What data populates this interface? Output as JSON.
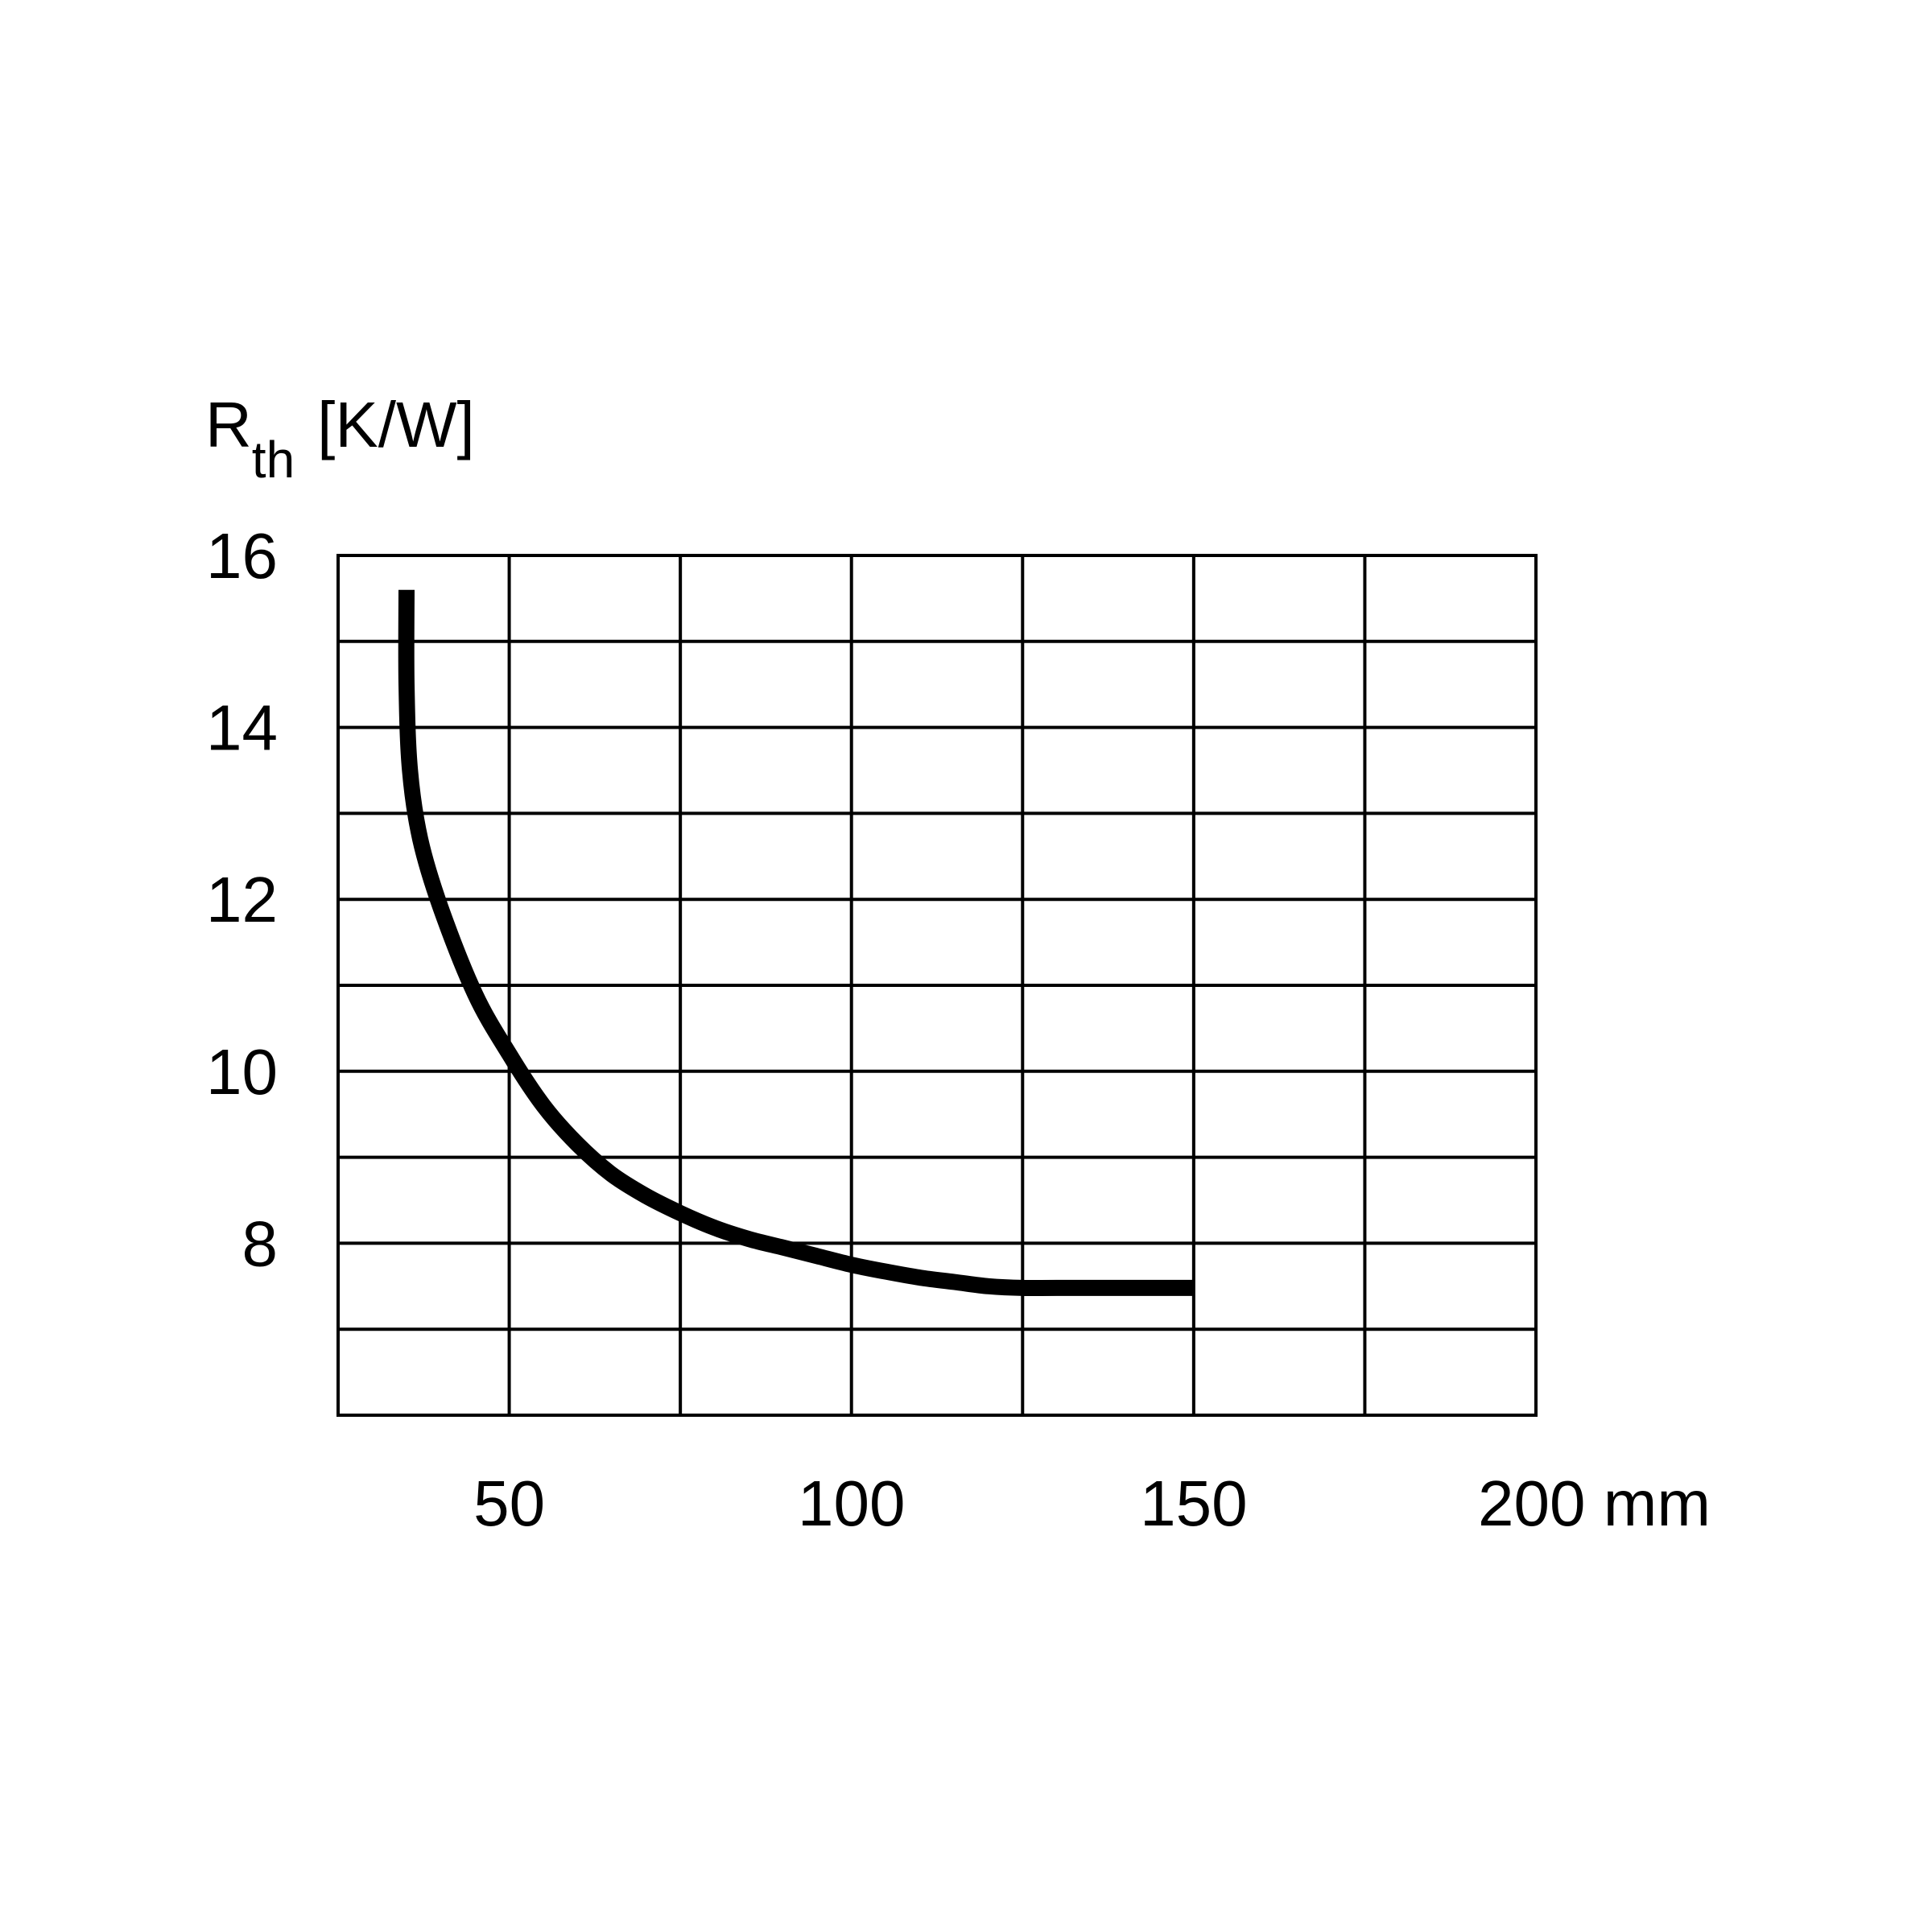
{
  "chart_data": {
    "type": "line",
    "title": "",
    "ylabel": {
      "symbol": "R",
      "subscript": "th",
      "unit": "[K/W]"
    },
    "xlabel": "",
    "x_unit": "mm",
    "xlim": [
      25,
      200
    ],
    "ylim": [
      6,
      16
    ],
    "x_ticks": [
      {
        "value": 50,
        "label": "50"
      },
      {
        "value": 100,
        "label": "100"
      },
      {
        "value": 150,
        "label": "150"
      },
      {
        "value": 200,
        "label": "200 mm"
      }
    ],
    "y_ticks": [
      {
        "value": 8,
        "label": "8"
      },
      {
        "value": 10,
        "label": "10"
      },
      {
        "value": 12,
        "label": "12"
      },
      {
        "value": 14,
        "label": "14"
      },
      {
        "value": 16,
        "label": "16"
      }
    ],
    "grid": true,
    "x_grid_step": 25,
    "y_grid_step": 1,
    "line_color": "#000000",
    "series": [
      {
        "x": [
          35,
          35,
          35.5,
          37,
          40,
          45,
          50,
          55,
          60,
          65,
          70,
          75,
          80,
          85,
          90,
          95,
          100,
          105,
          110,
          115,
          120,
          125,
          130,
          140,
          150
        ],
        "y": [
          15.6,
          14.5,
          13.5,
          12.7,
          11.9,
          10.9,
          10.2,
          9.6,
          9.15,
          8.8,
          8.55,
          8.35,
          8.18,
          8.05,
          7.95,
          7.85,
          7.75,
          7.67,
          7.6,
          7.55,
          7.5,
          7.48,
          7.48,
          7.48,
          7.48
        ]
      }
    ]
  }
}
